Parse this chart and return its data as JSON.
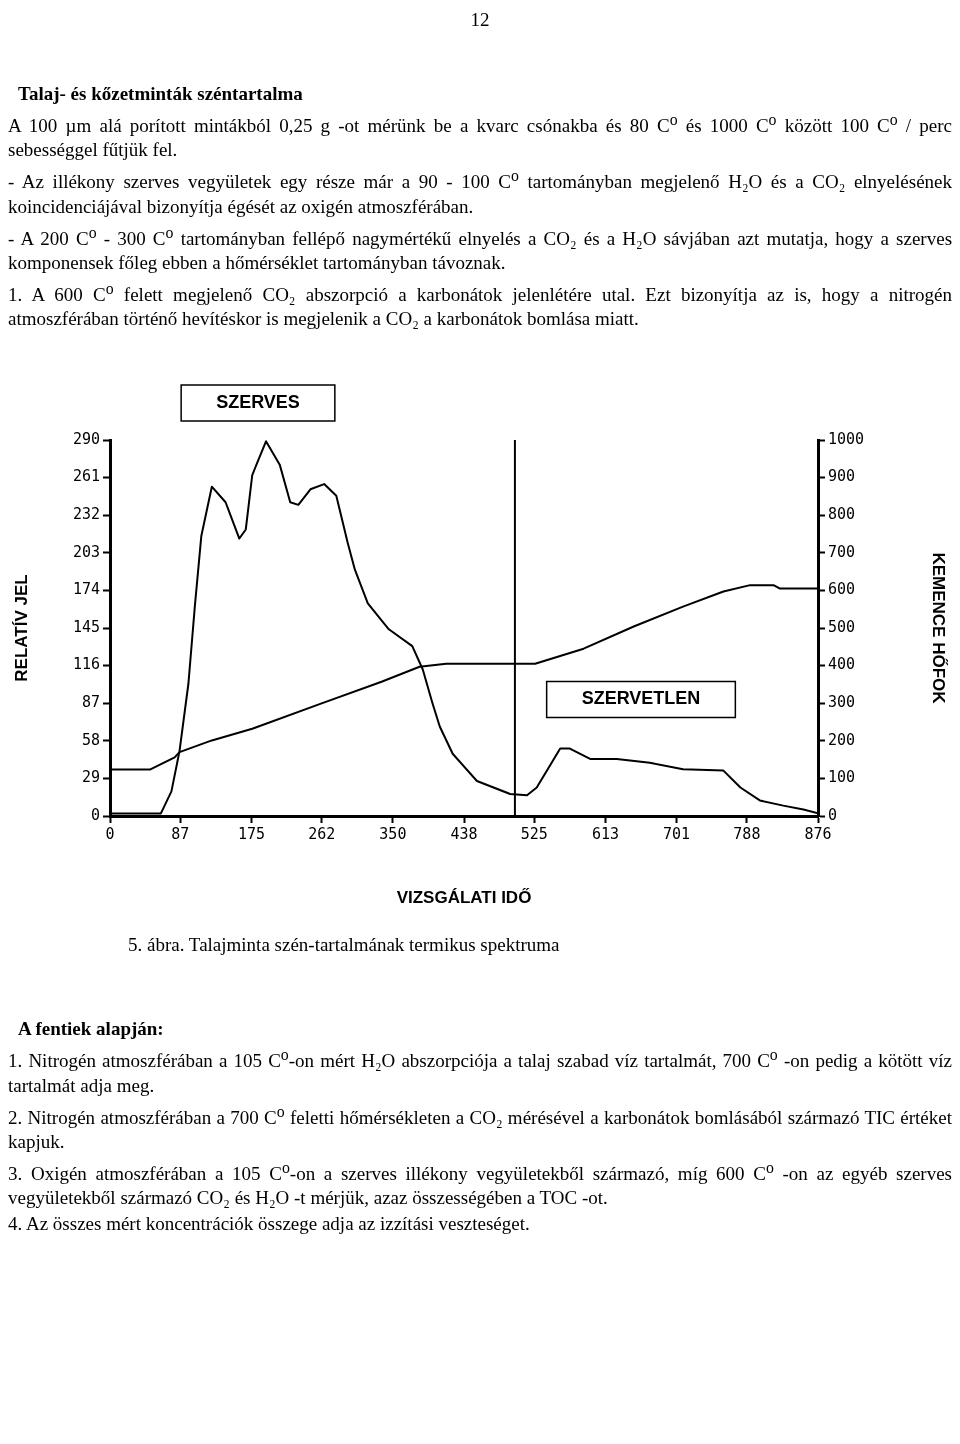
{
  "chart_data": {
    "type": "line",
    "title": "SZERVES",
    "subtitle": "5. ábra. Talajminta szén-tartalmának termikus spektruma",
    "xlabel": "VIZSGÁLATI IDŐ",
    "ylabel": "RELATÍV JEL",
    "y2label": "KEMENCE HŐFOK",
    "xlim": [
      0,
      876
    ],
    "xticks": [
      0,
      87,
      175,
      262,
      350,
      438,
      525,
      613,
      701,
      788,
      876
    ],
    "ylim": [
      0,
      290
    ],
    "yticks": [
      0,
      29,
      58,
      87,
      116,
      145,
      174,
      203,
      232,
      261,
      290
    ],
    "y2lim": [
      0,
      1000
    ],
    "y2ticks": [
      0,
      100,
      200,
      300,
      400,
      500,
      600,
      700,
      800,
      900,
      1000
    ],
    "series": [
      {
        "color": "#000000",
        "x": [
          0,
          30,
          63,
          76,
          86,
          97,
          105,
          113,
          126,
          143,
          160,
          168,
          176,
          193,
          210,
          223,
          233,
          248,
          265,
          280,
          294,
          303,
          319,
          345,
          374,
          387,
          399,
          408,
          424,
          454,
          495,
          516,
          528,
          557,
          569,
          594,
          627,
          668,
          709,
          759,
          780,
          804,
          833,
          858,
          876
        ],
        "values": [
          2,
          2,
          2,
          19,
          50,
          102,
          162,
          216,
          254,
          242,
          214,
          221,
          263,
          289,
          271,
          242,
          240,
          252,
          256,
          247,
          211,
          190,
          164,
          144,
          131,
          113,
          87,
          69,
          48,
          27,
          17,
          16,
          22,
          52,
          52,
          44,
          44,
          41,
          36,
          35,
          22,
          12,
          8,
          5,
          2
        ]
      },
      {
        "color": "#000000",
        "axis": "y2",
        "x": [
          0,
          50,
          80,
          86,
          126,
          176,
          261,
          336,
          383,
          416,
          526,
          586,
          648,
          709,
          759,
          792,
          821,
          829,
          876
        ],
        "values": [
          124,
          124,
          156,
          170,
          201,
          232,
          299,
          357,
          397,
          405,
          405,
          445,
          504,
          557,
          597,
          614,
          614,
          605,
          605
        ]
      }
    ],
    "ref_lines": [
      {
        "axis": "x",
        "value": 501,
        "color": "#000000"
      }
    ],
    "annotations": [
      "12",
      "Talaj- és kőzetminták széntartalma",
      "A 100  µm alá porított mintákból 0,25 g -ot mérünk be a kvarc csónakba és  80 C$^{o}$ és 1000 C$^{o}$ között 100 C$^{o}$ / perc sebességgel fűtjük fel.",
      "- Az illékony szerves vegyületek egy része már a 90 - 100 C$^{o}$ tartományban megjelenő H₂O és a CO₂ elnyelésének koincidenciájával bizonyítja égését az oxigén atmoszférában.",
      "- A 200 C$^{o}$ - 300 C$^{o}$ tartományban fellépő nagymértékű elnyelés a CO₂ és a H₂O sávjában azt mutatja, hogy a szerves komponensek főleg ebben a hőmérséklet tartományban távoznak.",
      "1. A 600 C$^{o}$ felett megjelenő CO₂ abszorpció a karbonátok jelenlétére utal. Ezt bizonyítja az is, hogy a nitrogén atmoszférában történő hevítéskor is megjelenik a CO₂ a karbonátok bomlása miatt.",
      "A fentiek alapján:",
      "1. Nitrogén atmoszférában a 105 C$^{o}$-on mért H₂O abszorpciója a talaj szabad víz tartalmát, 700 C$^{o}$ -on pedig a kötött víz tartalmát adja meg.",
      "2. Nitrogén atmoszférában a 700 C$^{o}$ feletti hőmérsékleten a CO₂ mérésével a karbonátok bomlásából származó TIC értéket kapjuk.",
      "3. Oxigén atmoszférában a 105 C$^{o}$-on a szerves illékony vegyületekből származó, míg 600 C$^{o}$ -on az egyéb szerves vegyületekből származó CO₂ és H₂O -t mérjük, azaz összességében a TOC -ot.",
      "4. Az összes mért koncentrációk összege adja az izzítási veszteséget.",
      "SZERVETLEN"
    ],
    "grid": false,
    "legend": false,
    "marker": "none",
    "line_style": "solid"
  }
}
